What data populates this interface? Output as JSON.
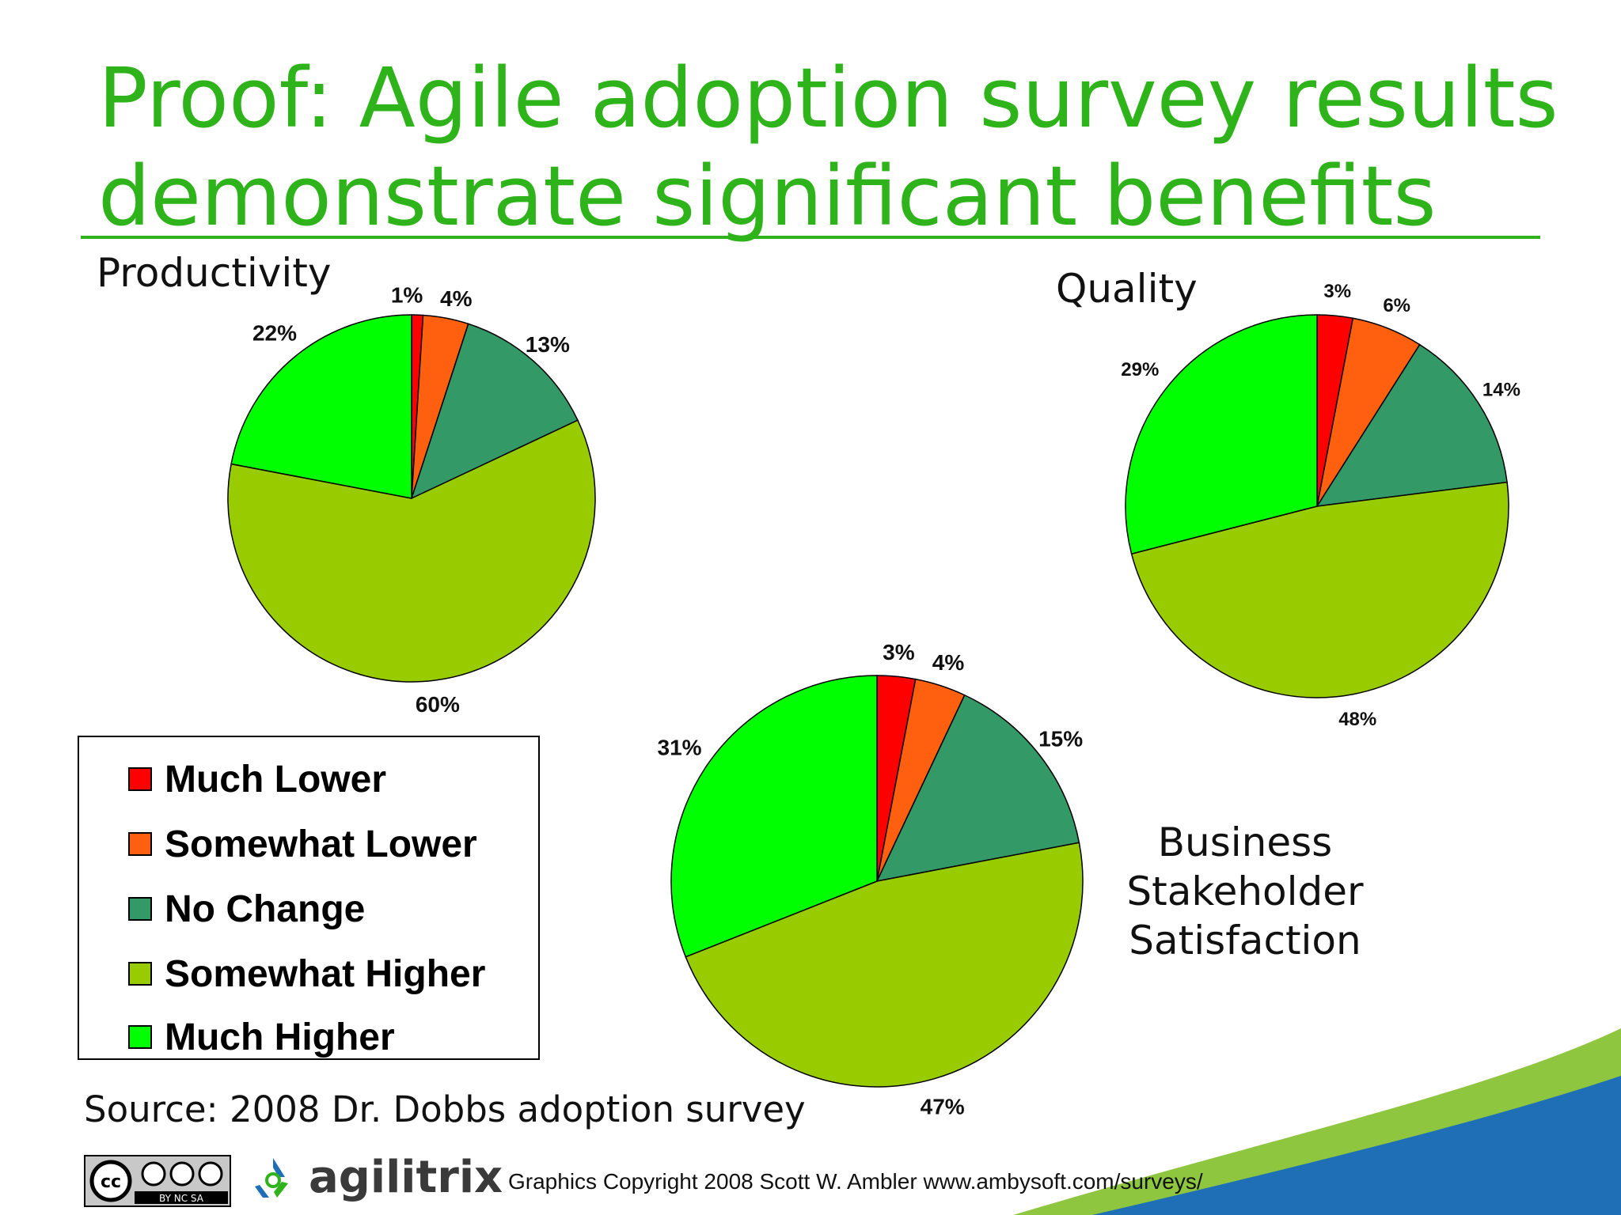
{
  "slide": {
    "title_line1": "Proof: Agile adoption survey results",
    "title_line2": "demonstrate significant benefits",
    "source": "Source: 2008 Dr. Dobbs adoption survey",
    "copyright": "Graphics Copyright 2008 Scott W. Ambler www.ambysoft.com/surveys/",
    "logo_text": "agilitrix",
    "cc_badge_text": "BY NC SA"
  },
  "legend": {
    "items": [
      {
        "label": "Much Lower",
        "color": "#ff0000"
      },
      {
        "label": "Somewhat Lower",
        "color": "#ff6010"
      },
      {
        "label": "No Change",
        "color": "#339966"
      },
      {
        "label": "Somewhat Higher",
        "color": "#99cc00"
      },
      {
        "label": "Much Higher",
        "color": "#00ff00"
      }
    ]
  },
  "chart_data": [
    {
      "type": "pie",
      "title": "Productivity",
      "categories": [
        "Much Lower",
        "Somewhat Lower",
        "No Change",
        "Somewhat Higher",
        "Much Higher"
      ],
      "values": [
        1,
        4,
        13,
        60,
        22
      ],
      "labels": [
        "1%",
        "4%",
        "13%",
        "60%",
        "22%"
      ],
      "legend": "left, below chart"
    },
    {
      "type": "pie",
      "title": "Quality",
      "categories": [
        "Much Lower",
        "Somewhat Lower",
        "No Change",
        "Somewhat Higher",
        "Much Higher"
      ],
      "values": [
        3,
        6,
        14,
        48,
        29
      ],
      "labels": [
        "3%",
        "6%",
        "14%",
        "48%",
        "29%"
      ]
    },
    {
      "type": "pie",
      "title_lines": [
        "Business",
        "Stakeholder",
        "Satisfaction"
      ],
      "categories": [
        "Much Lower",
        "Somewhat Lower",
        "No Change",
        "Somewhat Higher",
        "Much Higher"
      ],
      "values": [
        3,
        4,
        15,
        47,
        31
      ],
      "labels": [
        "3%",
        "4%",
        "15%",
        "47%",
        "31%"
      ]
    }
  ]
}
